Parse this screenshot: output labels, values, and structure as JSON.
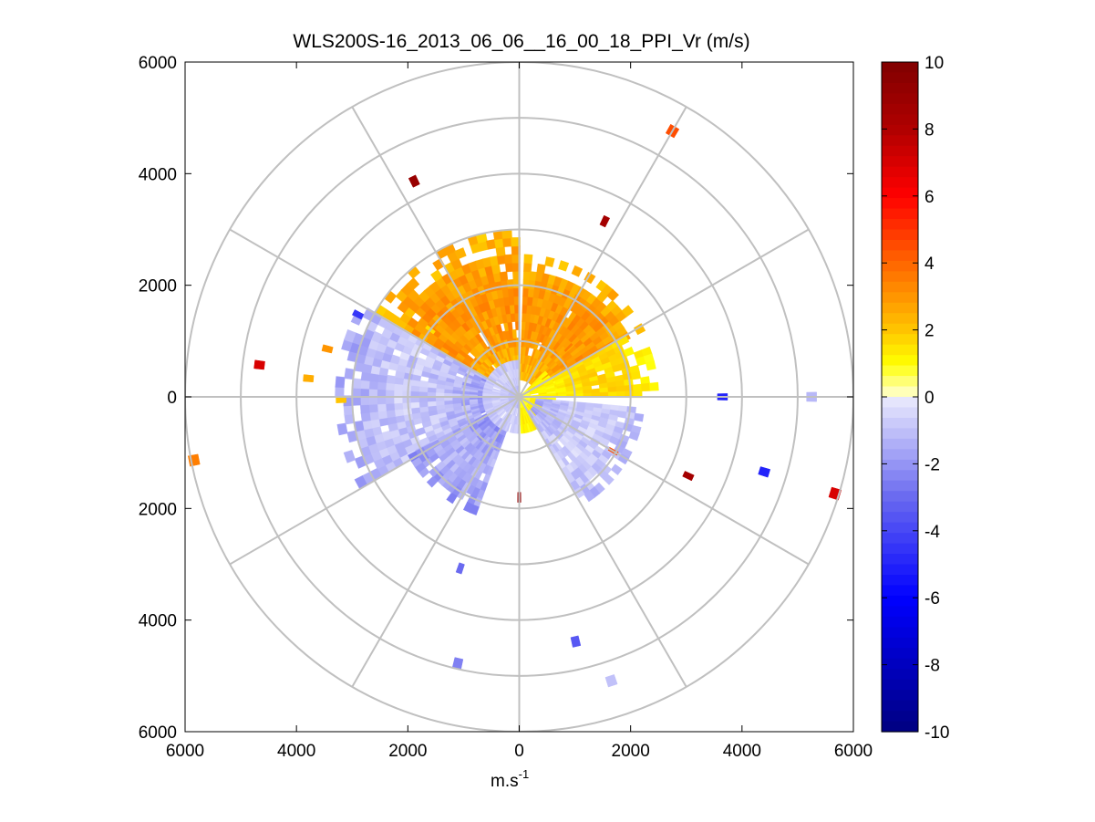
{
  "chart_data": {
    "type": "heatmap",
    "subtype": "polar-ppi-scan",
    "title": "WLS200S-16_2013_06_06__16_00_18_PPI_Vr (m/s)",
    "xlabel_base": "m.s",
    "xlabel_sup": "-1",
    "xlim": [
      -6000,
      6000
    ],
    "ylim": [
      -6000,
      6000
    ],
    "x_ticks": [
      "6000",
      "4000",
      "2000",
      "0",
      "2000",
      "4000",
      "6000"
    ],
    "y_ticks": [
      "6000",
      "4000",
      "2000",
      "0",
      "2000",
      "4000",
      "6000"
    ],
    "range_rings": [
      1000,
      2000,
      3000,
      4000,
      5000,
      6000
    ],
    "spokes_deg": [
      0,
      30,
      60,
      90,
      120,
      150,
      180,
      210,
      240,
      270,
      300,
      330
    ],
    "colorbar": {
      "min": -10,
      "max": 10,
      "ticks": [
        "10",
        "8",
        "6",
        "4",
        "2",
        "0",
        "-2",
        "-4",
        "-6",
        "-8",
        "-10"
      ],
      "stops": [
        {
          "v": -10,
          "c": "#000080"
        },
        {
          "v": -6,
          "c": "#0000ff"
        },
        {
          "v": -3,
          "c": "#6a6af0"
        },
        {
          "v": 0,
          "c": "#ececfd"
        },
        {
          "v": 0.01,
          "c": "#ffffd8"
        },
        {
          "v": 1,
          "c": "#ffff00"
        },
        {
          "v": 2,
          "c": "#ffc400"
        },
        {
          "v": 4,
          "c": "#ff6600"
        },
        {
          "v": 6,
          "c": "#ff0000"
        },
        {
          "v": 8,
          "c": "#b00000"
        },
        {
          "v": 10,
          "c": "#800000"
        }
      ]
    },
    "fields": [
      {
        "name": "north-west positive sector",
        "az": [
          300,
          358
        ],
        "range": [
          300,
          2950
        ],
        "vr": [
          1.2,
          3.6
        ]
      },
      {
        "name": "north-east positive sector",
        "az": [
          2,
          60
        ],
        "range": [
          300,
          2500
        ],
        "vr": [
          1.5,
          3.5
        ]
      },
      {
        "name": "east positive band",
        "az": [
          60,
          88
        ],
        "range": [
          400,
          2400
        ],
        "vr": [
          0.6,
          2.0
        ]
      },
      {
        "name": "near-east positive core",
        "az": [
          45,
          175
        ],
        "range": [
          50,
          650
        ],
        "vr": [
          0.4,
          1.6
        ]
      },
      {
        "name": "west negative sector",
        "az": [
          240,
          300
        ],
        "range": [
          600,
          3200
        ],
        "vr": [
          -2.6,
          -0.2
        ]
      },
      {
        "name": "south-west negative sector",
        "az": [
          200,
          240
        ],
        "range": [
          600,
          2200
        ],
        "vr": [
          -3.0,
          -0.8
        ]
      },
      {
        "name": "south-east negative sector",
        "az": [
          95,
          148
        ],
        "range": [
          300,
          2250
        ],
        "vr": [
          -2.2,
          -0.2
        ]
      },
      {
        "name": "near-center negative core",
        "az": [
          180,
          360
        ],
        "range": [
          50,
          600
        ],
        "vr": [
          -1.6,
          -0.3
        ]
      }
    ],
    "isolated_returns": [
      {
        "r": 5500,
        "az": 30,
        "vr": 4.5
      },
      {
        "r": 3500,
        "az": 26,
        "vr": 8.5
      },
      {
        "r": 4300,
        "az": 334,
        "vr": 9.0
      },
      {
        "r": 3250,
        "az": 297,
        "vr": -4.5
      },
      {
        "r": 4700,
        "az": 277,
        "vr": 7.0
      },
      {
        "r": 3550,
        "az": 284,
        "vr": 3.0
      },
      {
        "r": 3800,
        "az": 275,
        "vr": 2.5
      },
      {
        "r": 3200,
        "az": 269,
        "vr": 2.0
      },
      {
        "r": 5950,
        "az": 259,
        "vr": 3.5
      },
      {
        "r": 3650,
        "az": 90,
        "vr": -5.0
      },
      {
        "r": 5250,
        "az": 90,
        "vr": -1.2
      },
      {
        "r": 3350,
        "az": 115,
        "vr": 8.5
      },
      {
        "r": 4600,
        "az": 107,
        "vr": -5.0
      },
      {
        "r": 5930,
        "az": 107,
        "vr": 7.0
      },
      {
        "r": 1950,
        "az": 120,
        "vr": 4.5
      },
      {
        "r": 3250,
        "az": 199,
        "vr": -3.0
      },
      {
        "r": 4500,
        "az": 167,
        "vr": -3.5
      },
      {
        "r": 4900,
        "az": 193,
        "vr": -2.5
      },
      {
        "r": 5350,
        "az": 162,
        "vr": -1.0
      },
      {
        "r": 1800,
        "az": 180,
        "vr": 9.0
      },
      {
        "r": 2000,
        "az": 307,
        "vr": 1.5
      },
      {
        "r": 1250,
        "az": 45,
        "vr": 3.5
      }
    ]
  }
}
